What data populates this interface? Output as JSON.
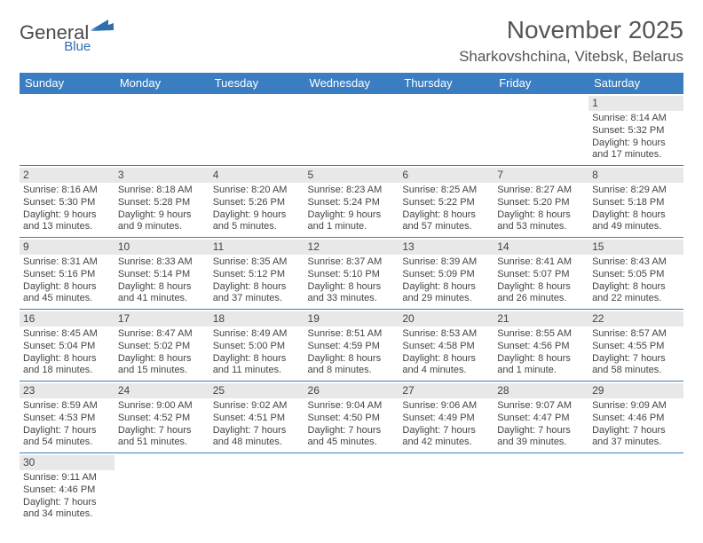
{
  "logo": {
    "text1": "General",
    "text2": "Blue",
    "text1_color": "#4a4a4a",
    "text2_color": "#2f6fb0",
    "flag_color": "#2f6fb0"
  },
  "title": "November 2025",
  "location": "Sharkovshchina, Vitebsk, Belarus",
  "colors": {
    "header_bg": "#3a7ec1",
    "header_fg": "#ffffff",
    "border": "#3a7ec1",
    "daynum_bg": "#e8e8e8",
    "text": "#444444"
  },
  "dayHeaders": [
    "Sunday",
    "Monday",
    "Tuesday",
    "Wednesday",
    "Thursday",
    "Friday",
    "Saturday"
  ],
  "weeks": [
    [
      {
        "empty": true
      },
      {
        "empty": true
      },
      {
        "empty": true
      },
      {
        "empty": true
      },
      {
        "empty": true
      },
      {
        "empty": true
      },
      {
        "num": "1",
        "sunrise": "Sunrise: 8:14 AM",
        "sunset": "Sunset: 5:32 PM",
        "day1": "Daylight: 9 hours",
        "day2": "and 17 minutes."
      }
    ],
    [
      {
        "num": "2",
        "sunrise": "Sunrise: 8:16 AM",
        "sunset": "Sunset: 5:30 PM",
        "day1": "Daylight: 9 hours",
        "day2": "and 13 minutes."
      },
      {
        "num": "3",
        "sunrise": "Sunrise: 8:18 AM",
        "sunset": "Sunset: 5:28 PM",
        "day1": "Daylight: 9 hours",
        "day2": "and 9 minutes."
      },
      {
        "num": "4",
        "sunrise": "Sunrise: 8:20 AM",
        "sunset": "Sunset: 5:26 PM",
        "day1": "Daylight: 9 hours",
        "day2": "and 5 minutes."
      },
      {
        "num": "5",
        "sunrise": "Sunrise: 8:23 AM",
        "sunset": "Sunset: 5:24 PM",
        "day1": "Daylight: 9 hours",
        "day2": "and 1 minute."
      },
      {
        "num": "6",
        "sunrise": "Sunrise: 8:25 AM",
        "sunset": "Sunset: 5:22 PM",
        "day1": "Daylight: 8 hours",
        "day2": "and 57 minutes."
      },
      {
        "num": "7",
        "sunrise": "Sunrise: 8:27 AM",
        "sunset": "Sunset: 5:20 PM",
        "day1": "Daylight: 8 hours",
        "day2": "and 53 minutes."
      },
      {
        "num": "8",
        "sunrise": "Sunrise: 8:29 AM",
        "sunset": "Sunset: 5:18 PM",
        "day1": "Daylight: 8 hours",
        "day2": "and 49 minutes."
      }
    ],
    [
      {
        "num": "9",
        "sunrise": "Sunrise: 8:31 AM",
        "sunset": "Sunset: 5:16 PM",
        "day1": "Daylight: 8 hours",
        "day2": "and 45 minutes."
      },
      {
        "num": "10",
        "sunrise": "Sunrise: 8:33 AM",
        "sunset": "Sunset: 5:14 PM",
        "day1": "Daylight: 8 hours",
        "day2": "and 41 minutes."
      },
      {
        "num": "11",
        "sunrise": "Sunrise: 8:35 AM",
        "sunset": "Sunset: 5:12 PM",
        "day1": "Daylight: 8 hours",
        "day2": "and 37 minutes."
      },
      {
        "num": "12",
        "sunrise": "Sunrise: 8:37 AM",
        "sunset": "Sunset: 5:10 PM",
        "day1": "Daylight: 8 hours",
        "day2": "and 33 minutes."
      },
      {
        "num": "13",
        "sunrise": "Sunrise: 8:39 AM",
        "sunset": "Sunset: 5:09 PM",
        "day1": "Daylight: 8 hours",
        "day2": "and 29 minutes."
      },
      {
        "num": "14",
        "sunrise": "Sunrise: 8:41 AM",
        "sunset": "Sunset: 5:07 PM",
        "day1": "Daylight: 8 hours",
        "day2": "and 26 minutes."
      },
      {
        "num": "15",
        "sunrise": "Sunrise: 8:43 AM",
        "sunset": "Sunset: 5:05 PM",
        "day1": "Daylight: 8 hours",
        "day2": "and 22 minutes."
      }
    ],
    [
      {
        "num": "16",
        "sunrise": "Sunrise: 8:45 AM",
        "sunset": "Sunset: 5:04 PM",
        "day1": "Daylight: 8 hours",
        "day2": "and 18 minutes."
      },
      {
        "num": "17",
        "sunrise": "Sunrise: 8:47 AM",
        "sunset": "Sunset: 5:02 PM",
        "day1": "Daylight: 8 hours",
        "day2": "and 15 minutes."
      },
      {
        "num": "18",
        "sunrise": "Sunrise: 8:49 AM",
        "sunset": "Sunset: 5:00 PM",
        "day1": "Daylight: 8 hours",
        "day2": "and 11 minutes."
      },
      {
        "num": "19",
        "sunrise": "Sunrise: 8:51 AM",
        "sunset": "Sunset: 4:59 PM",
        "day1": "Daylight: 8 hours",
        "day2": "and 8 minutes."
      },
      {
        "num": "20",
        "sunrise": "Sunrise: 8:53 AM",
        "sunset": "Sunset: 4:58 PM",
        "day1": "Daylight: 8 hours",
        "day2": "and 4 minutes."
      },
      {
        "num": "21",
        "sunrise": "Sunrise: 8:55 AM",
        "sunset": "Sunset: 4:56 PM",
        "day1": "Daylight: 8 hours",
        "day2": "and 1 minute."
      },
      {
        "num": "22",
        "sunrise": "Sunrise: 8:57 AM",
        "sunset": "Sunset: 4:55 PM",
        "day1": "Daylight: 7 hours",
        "day2": "and 58 minutes."
      }
    ],
    [
      {
        "num": "23",
        "sunrise": "Sunrise: 8:59 AM",
        "sunset": "Sunset: 4:53 PM",
        "day1": "Daylight: 7 hours",
        "day2": "and 54 minutes."
      },
      {
        "num": "24",
        "sunrise": "Sunrise: 9:00 AM",
        "sunset": "Sunset: 4:52 PM",
        "day1": "Daylight: 7 hours",
        "day2": "and 51 minutes."
      },
      {
        "num": "25",
        "sunrise": "Sunrise: 9:02 AM",
        "sunset": "Sunset: 4:51 PM",
        "day1": "Daylight: 7 hours",
        "day2": "and 48 minutes."
      },
      {
        "num": "26",
        "sunrise": "Sunrise: 9:04 AM",
        "sunset": "Sunset: 4:50 PM",
        "day1": "Daylight: 7 hours",
        "day2": "and 45 minutes."
      },
      {
        "num": "27",
        "sunrise": "Sunrise: 9:06 AM",
        "sunset": "Sunset: 4:49 PM",
        "day1": "Daylight: 7 hours",
        "day2": "and 42 minutes."
      },
      {
        "num": "28",
        "sunrise": "Sunrise: 9:07 AM",
        "sunset": "Sunset: 4:47 PM",
        "day1": "Daylight: 7 hours",
        "day2": "and 39 minutes."
      },
      {
        "num": "29",
        "sunrise": "Sunrise: 9:09 AM",
        "sunset": "Sunset: 4:46 PM",
        "day1": "Daylight: 7 hours",
        "day2": "and 37 minutes."
      }
    ],
    [
      {
        "num": "30",
        "sunrise": "Sunrise: 9:11 AM",
        "sunset": "Sunset: 4:46 PM",
        "day1": "Daylight: 7 hours",
        "day2": "and 34 minutes."
      },
      {
        "empty": true
      },
      {
        "empty": true
      },
      {
        "empty": true
      },
      {
        "empty": true
      },
      {
        "empty": true
      },
      {
        "empty": true
      }
    ]
  ]
}
